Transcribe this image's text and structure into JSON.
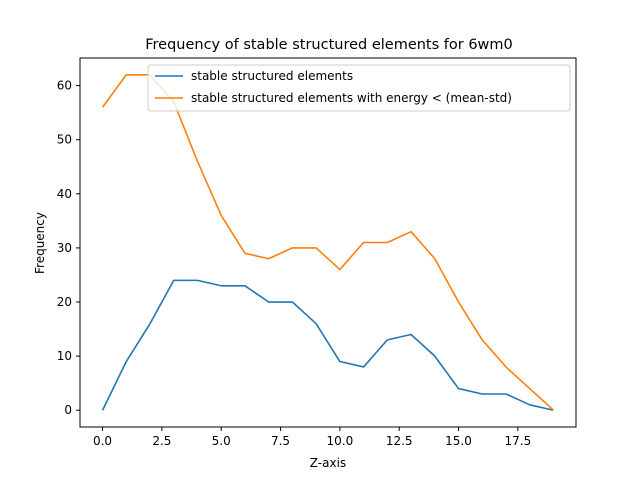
{
  "chart_data": {
    "type": "line",
    "title": "Frequency of stable structured elements for 6wm0",
    "xlabel": "Z-axis",
    "ylabel": "Frequency",
    "xlim": [
      -0.95,
      19.95
    ],
    "ylim": [
      -3.1,
      65.1
    ],
    "xticks": [
      0,
      2.5,
      5,
      7.5,
      10,
      12.5,
      15,
      17.5
    ],
    "xtick_labels": [
      "0.0",
      "2.5",
      "5.0",
      "7.5",
      "10.0",
      "12.5",
      "15.0",
      "17.5"
    ],
    "yticks": [
      0,
      10,
      20,
      30,
      40,
      50,
      60
    ],
    "ytick_labels": [
      "0",
      "10",
      "20",
      "30",
      "40",
      "50",
      "60"
    ],
    "grid": false,
    "legend_position": "top-right",
    "x": [
      0,
      1,
      2,
      3,
      4,
      5,
      6,
      7,
      8,
      9,
      10,
      11,
      12,
      13,
      14,
      15,
      16,
      17,
      18,
      19
    ],
    "series": [
      {
        "name": "stable structured elements",
        "color": "#1f77b4",
        "values": [
          0,
          9,
          16,
          24,
          24,
          23,
          23,
          20,
          20,
          16,
          9,
          8,
          13,
          14,
          10,
          4,
          3,
          3,
          1,
          0
        ]
      },
      {
        "name": "stable structured elements with energy < (mean-std)",
        "color": "#ff7f0e",
        "values": [
          56,
          62,
          62,
          57,
          46,
          36,
          29,
          28,
          30,
          30,
          26,
          31,
          31,
          33,
          28,
          20,
          13,
          8,
          4,
          0
        ]
      }
    ]
  }
}
